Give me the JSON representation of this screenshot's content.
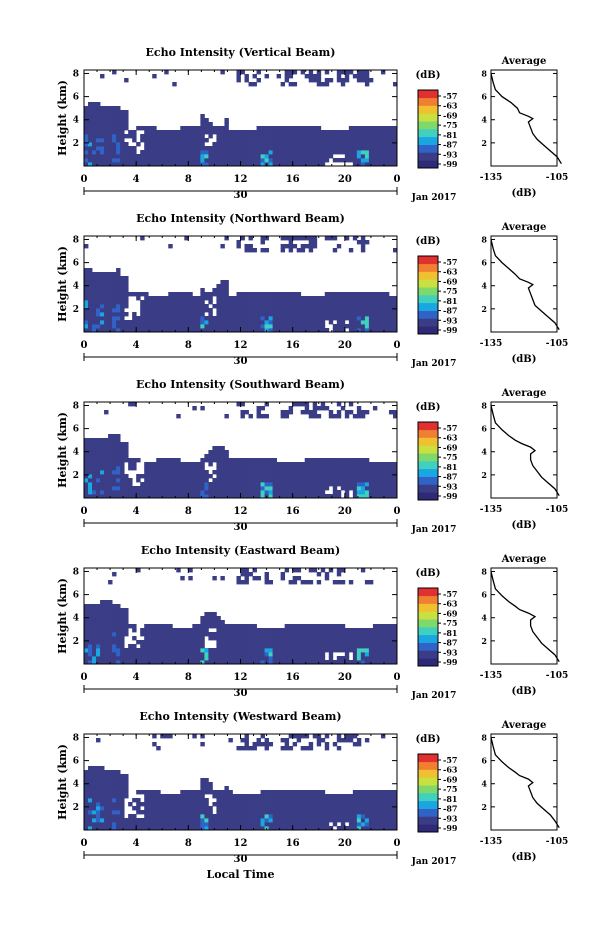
{
  "xlabel": "Local Time",
  "colors": {
    "background": "#ffffff",
    "floor": "#3a3d86",
    "colormap": [
      "#2e2a78",
      "#3a3d86",
      "#2f63c8",
      "#1aa6e0",
      "#40d0c0",
      "#7fd86a",
      "#c8e040",
      "#f0c030",
      "#f08030",
      "#e03030"
    ]
  },
  "chart_data": [
    {
      "type": "heatmap",
      "title": "Echo Intensity (Vertical Beam)",
      "ylabel": "Height (km)",
      "xticks": [
        "0",
        "4",
        "8",
        "12",
        "16",
        "20",
        "0"
      ],
      "xlim": [
        0,
        24
      ],
      "yticks": [
        "2",
        "4",
        "6",
        "8"
      ],
      "ylim": [
        0,
        8.3
      ],
      "date_tick": "30",
      "date_label": "Jan 2017",
      "colorbar_unit": "(dB)",
      "colorbar_ticks": [
        "-57",
        "-63",
        "-69",
        "-75",
        "-81",
        "-87",
        "-93",
        "-99"
      ],
      "profile": {
        "title": "Average",
        "xlabel": "(dB)",
        "xticks": [
          "-135",
          "-105"
        ],
        "yticks": [
          "2",
          "4",
          "6",
          "8"
        ],
        "xlim": [
          -135,
          -105
        ],
        "ylim": [
          0,
          8.3
        ],
        "points": [
          [
            -103,
            0.2
          ],
          [
            -105,
            0.8
          ],
          [
            -108,
            1.3
          ],
          [
            -111,
            1.8
          ],
          [
            -114,
            2.3
          ],
          [
            -116,
            2.8
          ],
          [
            -117,
            3.3
          ],
          [
            -118,
            3.8
          ],
          [
            -116,
            4.1
          ],
          [
            -118,
            4.3
          ],
          [
            -122,
            4.6
          ],
          [
            -123,
            5.0
          ],
          [
            -126,
            5.5
          ],
          [
            -130,
            6.0
          ],
          [
            -133,
            6.6
          ],
          [
            -134,
            7.2
          ],
          [
            -135,
            8.0
          ]
        ]
      }
    },
    {
      "type": "heatmap",
      "title": "Echo Intensity (Northward Beam)",
      "ylabel": "Height (km)",
      "xticks": [
        "0",
        "4",
        "8",
        "12",
        "16",
        "20",
        "0"
      ],
      "xlim": [
        0,
        24
      ],
      "yticks": [
        "2",
        "4",
        "6",
        "8"
      ],
      "ylim": [
        0,
        8.3
      ],
      "date_tick": "30",
      "date_label": "Jan 2017",
      "colorbar_unit": "(dB)",
      "colorbar_ticks": [
        "-57",
        "-63",
        "-69",
        "-75",
        "-81",
        "-87",
        "-93",
        "-99"
      ],
      "profile": {
        "title": "Average",
        "xlabel": "(dB)",
        "xticks": [
          "-135",
          "-105"
        ],
        "yticks": [
          "2",
          "4",
          "6",
          "8"
        ],
        "xlim": [
          -135,
          -105
        ],
        "ylim": [
          0,
          8.3
        ],
        "points": [
          [
            -104,
            0.2
          ],
          [
            -106,
            0.8
          ],
          [
            -109,
            1.3
          ],
          [
            -112,
            1.8
          ],
          [
            -115,
            2.3
          ],
          [
            -116,
            2.8
          ],
          [
            -117,
            3.3
          ],
          [
            -118,
            3.8
          ],
          [
            -116,
            4.1
          ],
          [
            -118,
            4.3
          ],
          [
            -122,
            4.6
          ],
          [
            -124,
            5.0
          ],
          [
            -127,
            5.5
          ],
          [
            -130,
            6.0
          ],
          [
            -133,
            6.6
          ],
          [
            -134,
            7.2
          ],
          [
            -135,
            8.0
          ]
        ]
      }
    },
    {
      "type": "heatmap",
      "title": "Echo Intensity (Southward Beam)",
      "ylabel": "Height (km)",
      "xticks": [
        "0",
        "4",
        "8",
        "12",
        "16",
        "20",
        "0"
      ],
      "xlim": [
        0,
        24
      ],
      "yticks": [
        "2",
        "4",
        "6",
        "8"
      ],
      "ylim": [
        0,
        8.3
      ],
      "date_tick": "30",
      "date_label": "Jan 2017",
      "colorbar_unit": "(dB)",
      "colorbar_ticks": [
        "-57",
        "-63",
        "-69",
        "-75",
        "-81",
        "-87",
        "-93",
        "-99"
      ],
      "profile": {
        "title": "Average",
        "xlabel": "(dB)",
        "xticks": [
          "-135",
          "-105"
        ],
        "yticks": [
          "2",
          "4",
          "6",
          "8"
        ],
        "xlim": [
          -135,
          -105
        ],
        "ylim": [
          0,
          8.3
        ],
        "points": [
          [
            -104,
            0.2
          ],
          [
            -106,
            0.8
          ],
          [
            -109,
            1.3
          ],
          [
            -112,
            1.8
          ],
          [
            -114,
            2.3
          ],
          [
            -116,
            2.8
          ],
          [
            -117,
            3.3
          ],
          [
            -117,
            3.8
          ],
          [
            -115,
            4.1
          ],
          [
            -117,
            4.4
          ],
          [
            -121,
            4.7
          ],
          [
            -124,
            5.0
          ],
          [
            -127,
            5.4
          ],
          [
            -130,
            5.9
          ],
          [
            -133,
            6.5
          ],
          [
            -134,
            7.2
          ],
          [
            -135,
            8.0
          ]
        ]
      }
    },
    {
      "type": "heatmap",
      "title": "Echo Intensity (Eastward Beam)",
      "ylabel": "Height (km)",
      "xticks": [
        "0",
        "4",
        "8",
        "12",
        "16",
        "20",
        "0"
      ],
      "xlim": [
        0,
        24
      ],
      "yticks": [
        "2",
        "4",
        "6",
        "8"
      ],
      "ylim": [
        0,
        8.3
      ],
      "date_tick": "30",
      "date_label": "Jan 2017",
      "colorbar_unit": "(dB)",
      "colorbar_ticks": [
        "-57",
        "-63",
        "-69",
        "-75",
        "-81",
        "-87",
        "-93",
        "-99"
      ],
      "profile": {
        "title": "Average",
        "xlabel": "(dB)",
        "xticks": [
          "-135",
          "-105"
        ],
        "yticks": [
          "2",
          "4",
          "6",
          "8"
        ],
        "xlim": [
          -135,
          -105
        ],
        "ylim": [
          0,
          8.3
        ],
        "points": [
          [
            -104,
            0.2
          ],
          [
            -106,
            0.8
          ],
          [
            -109,
            1.3
          ],
          [
            -112,
            1.8
          ],
          [
            -114,
            2.3
          ],
          [
            -116,
            2.8
          ],
          [
            -117,
            3.3
          ],
          [
            -117,
            3.8
          ],
          [
            -115,
            4.1
          ],
          [
            -118,
            4.4
          ],
          [
            -122,
            4.7
          ],
          [
            -124,
            5.0
          ],
          [
            -127,
            5.4
          ],
          [
            -130,
            5.9
          ],
          [
            -133,
            6.5
          ],
          [
            -134,
            7.2
          ],
          [
            -135,
            8.0
          ]
        ]
      }
    },
    {
      "type": "heatmap",
      "title": "Echo Intensity (Westward Beam)",
      "ylabel": "Height (km)",
      "xticks": [
        "0",
        "4",
        "8",
        "12",
        "16",
        "20",
        "0"
      ],
      "xlim": [
        0,
        24
      ],
      "yticks": [
        "2",
        "4",
        "6",
        "8"
      ],
      "ylim": [
        0,
        8.3
      ],
      "date_tick": "30",
      "date_label": "Jan 2017",
      "colorbar_unit": "(dB)",
      "colorbar_ticks": [
        "-57",
        "-63",
        "-69",
        "-75",
        "-81",
        "-87",
        "-93",
        "-99"
      ],
      "profile": {
        "title": "Average",
        "xlabel": "(dB)",
        "xticks": [
          "-135",
          "-105"
        ],
        "yticks": [
          "2",
          "4",
          "6",
          "8"
        ],
        "xlim": [
          -135,
          -105
        ],
        "ylim": [
          0,
          8.3
        ],
        "points": [
          [
            -104,
            0.2
          ],
          [
            -106,
            0.8
          ],
          [
            -108,
            1.3
          ],
          [
            -111,
            1.8
          ],
          [
            -114,
            2.3
          ],
          [
            -116,
            2.8
          ],
          [
            -117,
            3.3
          ],
          [
            -118,
            3.8
          ],
          [
            -116,
            4.1
          ],
          [
            -118,
            4.4
          ],
          [
            -122,
            4.7
          ],
          [
            -124,
            5.0
          ],
          [
            -127,
            5.4
          ],
          [
            -130,
            5.9
          ],
          [
            -133,
            6.5
          ],
          [
            -134,
            7.2
          ],
          [
            -135,
            8.0
          ]
        ]
      }
    }
  ]
}
